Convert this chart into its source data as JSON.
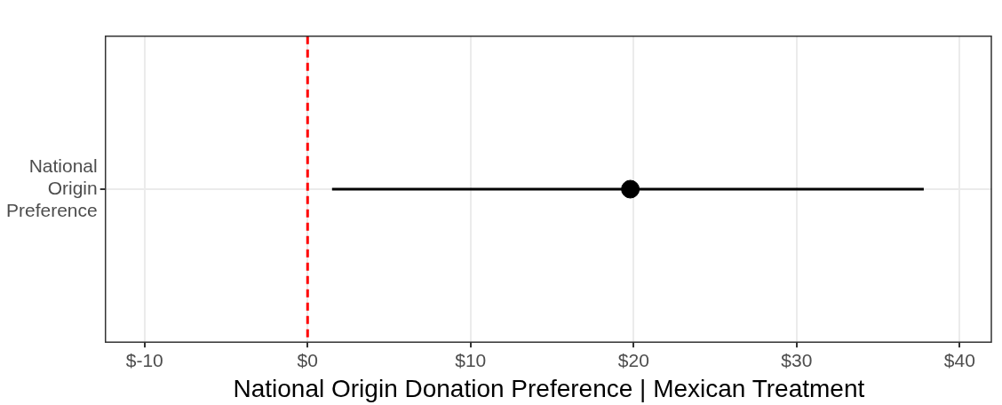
{
  "chart_data": {
    "type": "scatter",
    "orientation": "horizontal",
    "xlabel": "National Origin Donation Preference | Mexican Treatment",
    "categories": [
      "National Origin Preference"
    ],
    "series": [
      {
        "color": "#000000",
        "values": [
          19.8
        ],
        "errors": [
          [
            1.5,
            37.8
          ]
        ]
      }
    ],
    "xlim": [
      -12.4,
      42
    ],
    "xticks": [
      {
        "value": -10,
        "label": "$-10"
      },
      {
        "value": 0,
        "label": "$0"
      },
      {
        "value": 10,
        "label": "$10"
      },
      {
        "value": 20,
        "label": "$20"
      },
      {
        "value": 30,
        "label": "$30"
      },
      {
        "value": 40,
        "label": "$40"
      }
    ],
    "ref_lines": [
      {
        "axis": "x",
        "value": 0,
        "color": "#ff0000",
        "line_style": "dashed"
      }
    ],
    "grid": true,
    "legend": false,
    "marker": "circle"
  }
}
